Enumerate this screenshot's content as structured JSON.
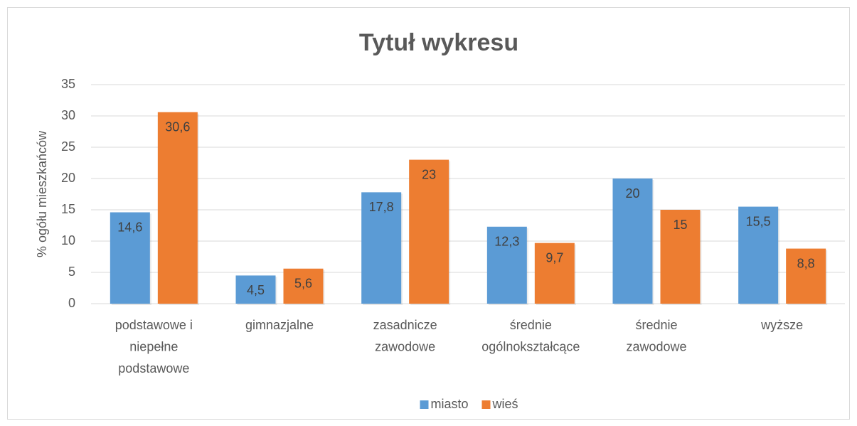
{
  "chart_data": {
    "type": "bar",
    "title": "Tytuł wykresu",
    "y_label": "% ogółu mieszkańców",
    "categories": [
      "podstawowe i niepełne podstawowe",
      "gimnazjalne",
      "zasadnicze zawodowe",
      "średnie ogólnokształcące",
      "średnie zawodowe",
      "wyższe"
    ],
    "series": [
      {
        "name": "miasto",
        "color": "#5b9bd5",
        "values": [
          14.6,
          4.5,
          17.8,
          12.3,
          20,
          15.5
        ],
        "value_labels": [
          "14,6",
          "4,5",
          "17,8",
          "12,3",
          "20",
          "15,5"
        ]
      },
      {
        "name": "wieś",
        "color": "#ed7d31",
        "values": [
          30.6,
          5.6,
          23,
          9.7,
          15,
          8.8
        ],
        "value_labels": [
          "30,6",
          "5,6",
          "23",
          "9,7",
          "15",
          "8,8"
        ]
      }
    ],
    "ylim": [
      0,
      35
    ],
    "yticks": [
      0,
      5,
      10,
      15,
      20,
      25,
      30,
      35
    ],
    "grid": true,
    "legend": "bottom"
  }
}
